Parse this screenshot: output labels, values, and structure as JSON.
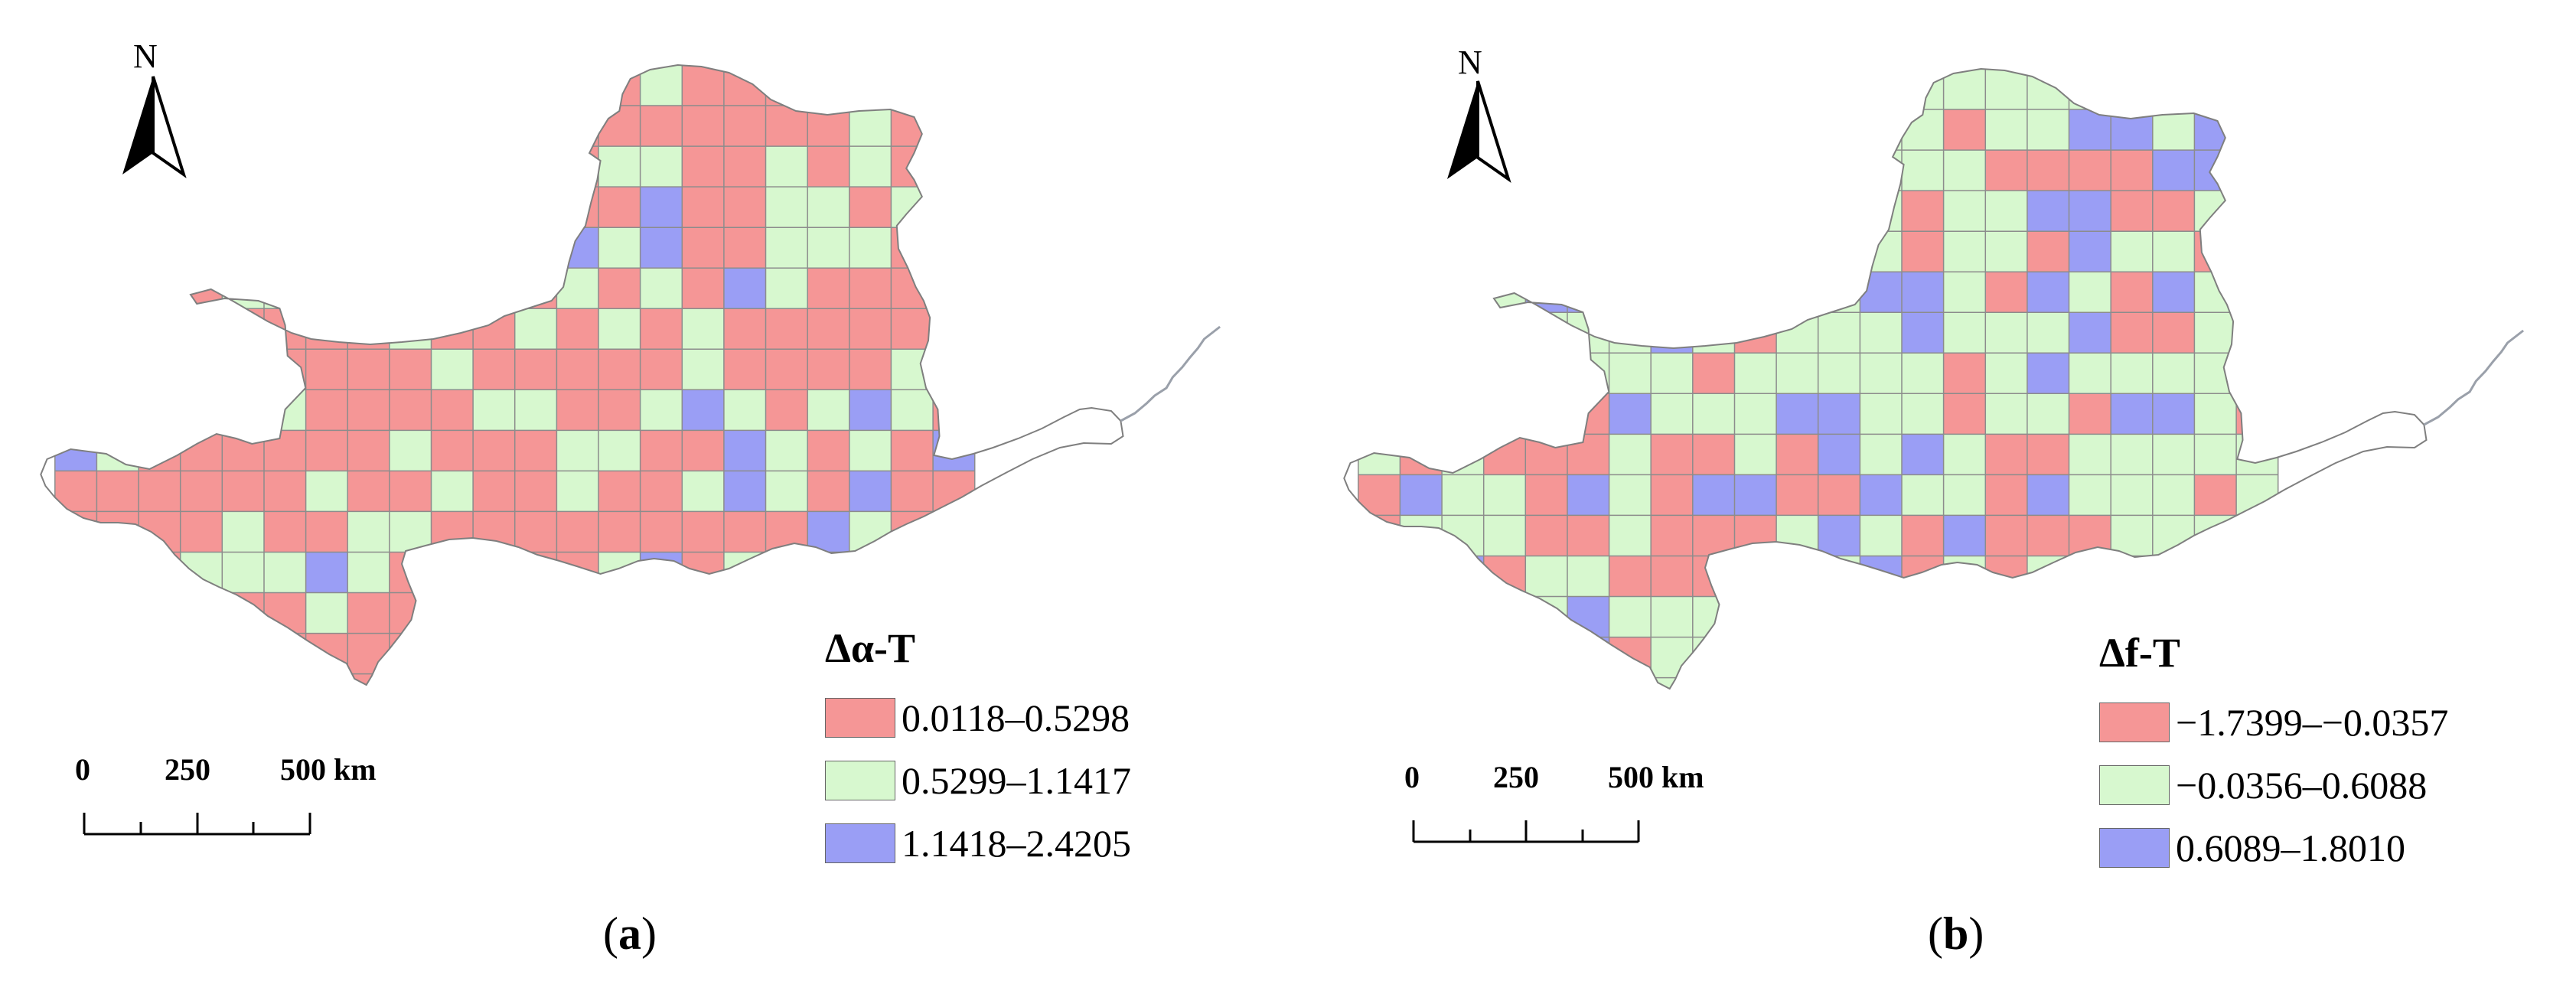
{
  "colors": {
    "class1": "#f59696",
    "class2": "#d7f8cf",
    "class3": "#9a9ef5",
    "grid": "#8c8c8c",
    "river": "#9aa0aa"
  },
  "panels": [
    {
      "caption_letter": "a",
      "north_label": "N",
      "legend": {
        "title": "Δα-T",
        "items": [
          {
            "label": "0.0118–0.5298"
          },
          {
            "label": "0.5299–1.1417"
          },
          {
            "label": "1.1418–2.4205"
          }
        ]
      },
      "scale": {
        "t0": "0",
        "t1": "250",
        "t2": "500 km"
      }
    },
    {
      "caption_letter": "b",
      "north_label": "N",
      "legend": {
        "title": "Δf-T",
        "items": [
          {
            "label": "−1.7399–−0.0357"
          },
          {
            "label": "−0.0356–0.6088"
          },
          {
            "label": "0.6089–1.8010"
          }
        ]
      },
      "scale": {
        "t0": "0",
        "t1": "250",
        "t2": "500 km"
      }
    }
  ]
}
